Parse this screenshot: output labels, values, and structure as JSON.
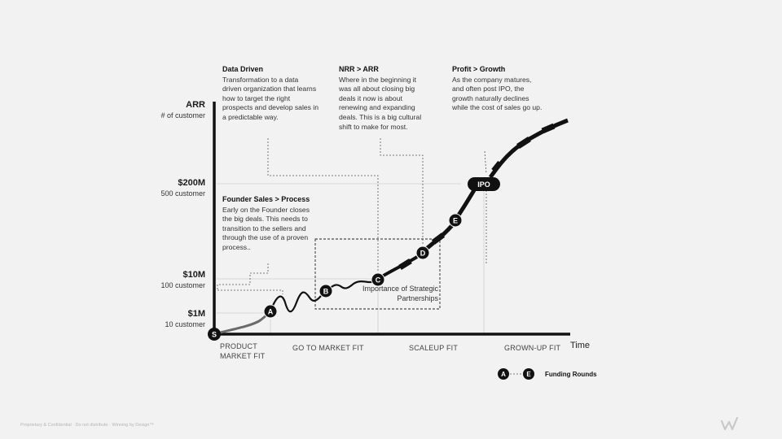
{
  "axes": {
    "y_title": "ARR",
    "y_subtitle": "# of  customer",
    "x_title": "Time"
  },
  "y_levels": [
    {
      "value": "$200M",
      "sub": "500 customer"
    },
    {
      "value": "$10M",
      "sub": "100 customer"
    },
    {
      "value": "$1M",
      "sub": "10 customer"
    }
  ],
  "notes": [
    {
      "title": "Data Driven",
      "body": "Transformation to a data driven organization that learns how to target the right prospects and develop sales in a predictable way."
    },
    {
      "title": "NRR > ARR",
      "body": "Where in the beginning it was all about closing big deals it now is about renewing and expanding deals. This is a big cultural shift to make for most."
    },
    {
      "title": "Profit > Growth",
      "body": "As the company matures, and often post IPO, the growth naturally declines while the cost of sales go up."
    },
    {
      "title": "Founder Sales > Process",
      "body": "Early on the Founder closes the big deals. This needs to transition to the sellers and through the use of a proven process.."
    }
  ],
  "partnerships_label": "Importance of Strategic Partnerships",
  "phases": [
    "PRODUCT MARKET FIT",
    "GO TO MARKET FIT",
    "SCALEUP FIT",
    "GROWN-UP FIT"
  ],
  "markers": [
    "S",
    "A",
    "B",
    "C",
    "D",
    "E"
  ],
  "ipo_label": "IPO",
  "legend": {
    "from": "A",
    "to": "E",
    "label": "Funding Rounds"
  },
  "footer": "Proprietary & Confidential · Do not distribute · Winning by Design™",
  "logo_icon": "wbd-logo-icon"
}
